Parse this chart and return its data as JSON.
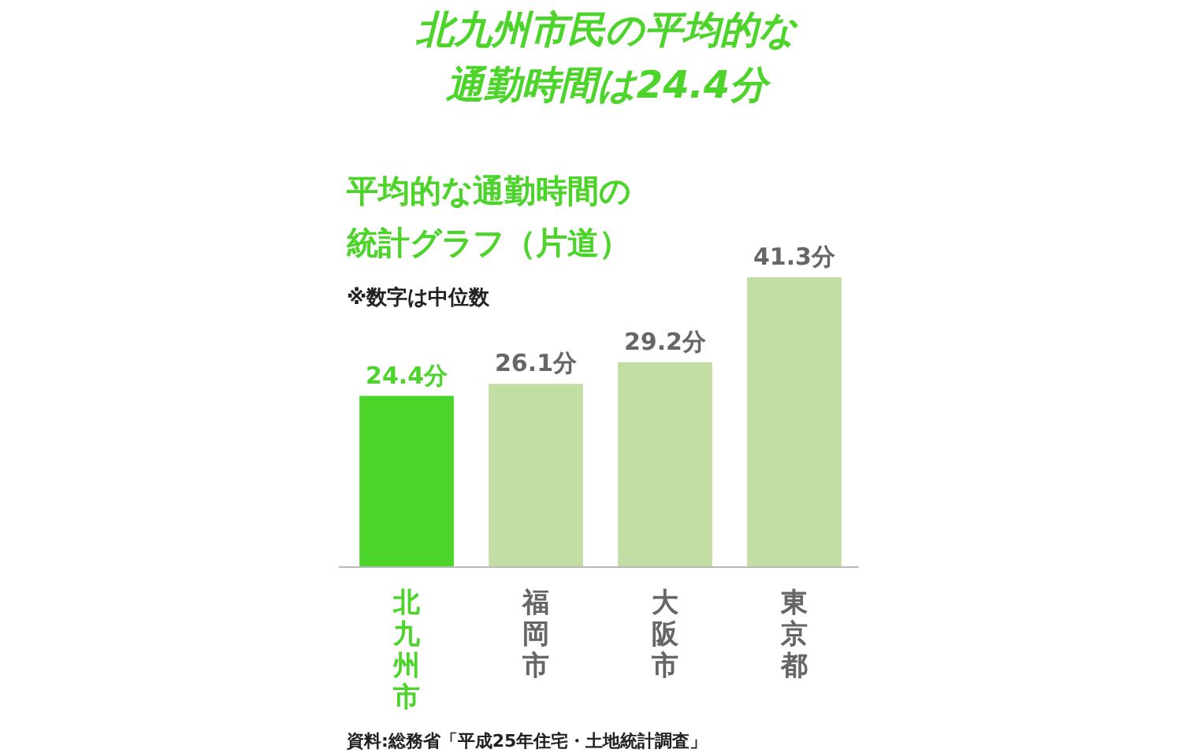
{
  "chart_data": {
    "type": "bar",
    "title": "北九州市民の平均的な通勤時間は24.4分",
    "subtitle": "平均的な通勤時間の統計グラフ（片道）",
    "annotations": [
      "※数字は中位数",
      "資料:総務省「平成25年住宅・土地統計調査」"
    ],
    "categories": [
      "北九州市",
      "福岡市",
      "大阪市",
      "東京都"
    ],
    "values": [
      24.4,
      26.1,
      29.2,
      41.3
    ],
    "colors": [
      "#4cd42a",
      "#c2dea4",
      "#c2dea4",
      "#c2dea4"
    ],
    "value_labels": [
      "24.4分",
      "26.1分",
      "29.2分",
      "41.3分"
    ]
  }
}
